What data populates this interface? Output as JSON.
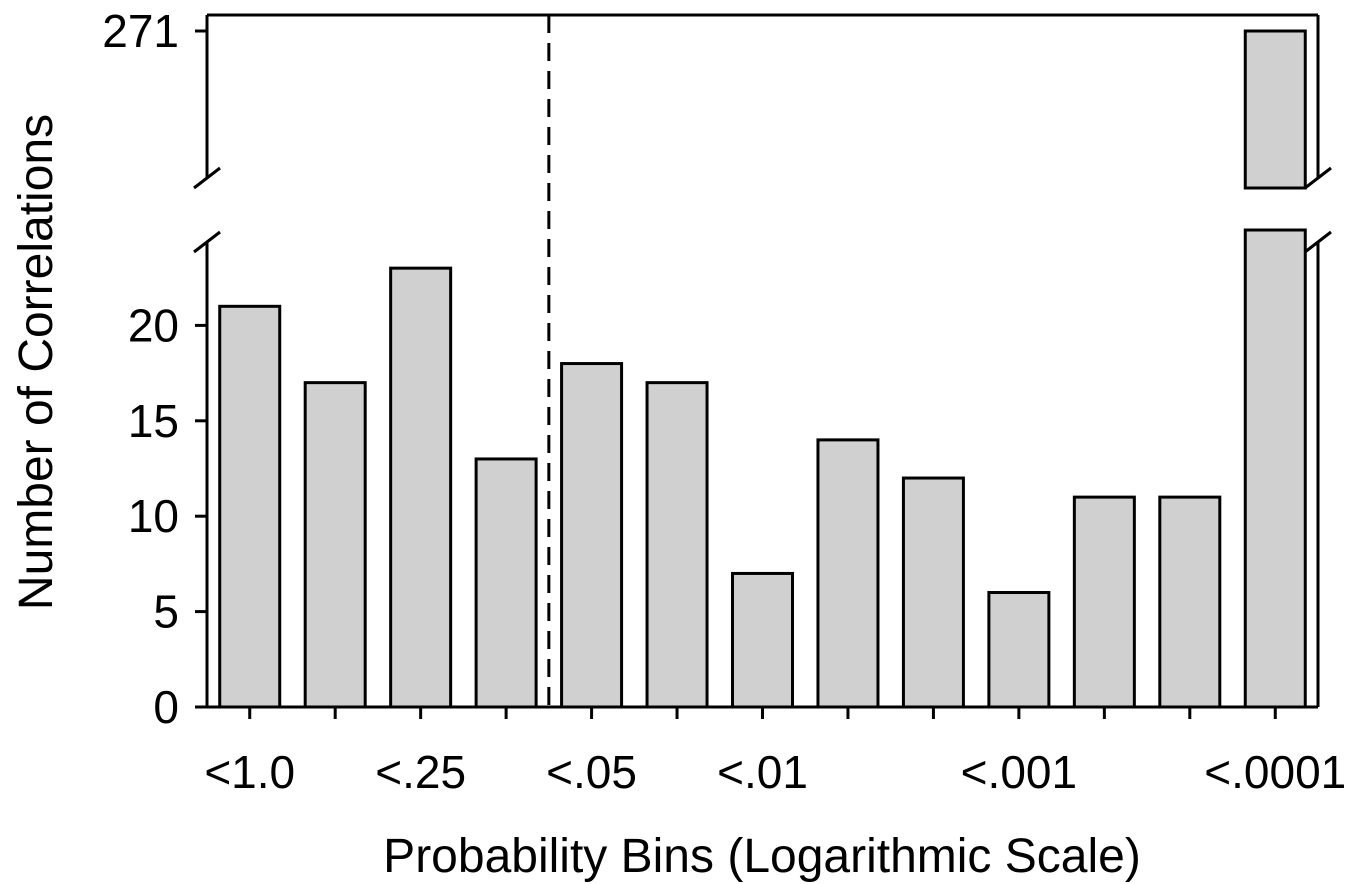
{
  "chart_data": {
    "type": "bar",
    "title": "",
    "xlabel": "Probability Bins (Logarithmic Scale)",
    "ylabel": "Number of Correlations",
    "values": [
      21,
      17,
      23,
      13,
      18,
      17,
      7,
      14,
      12,
      6,
      11,
      11,
      271
    ],
    "x_tick_labels": [
      "<1.0",
      "<.25",
      "<.05",
      "<.01",
      "<.001",
      "<.0001"
    ],
    "x_tick_label_bins": [
      0,
      2,
      4,
      6,
      9,
      12
    ],
    "y_ticks": [
      0,
      5,
      10,
      15,
      20
    ],
    "y_break": {
      "lower_axis_max": 25,
      "upper_axis_tick": 271
    },
    "threshold_line": {
      "style": "dashed",
      "between_bins": [
        3,
        4
      ]
    },
    "grid": false,
    "legend": "none",
    "bar_color": "#d0d0d0",
    "edge_color": "#000000"
  }
}
